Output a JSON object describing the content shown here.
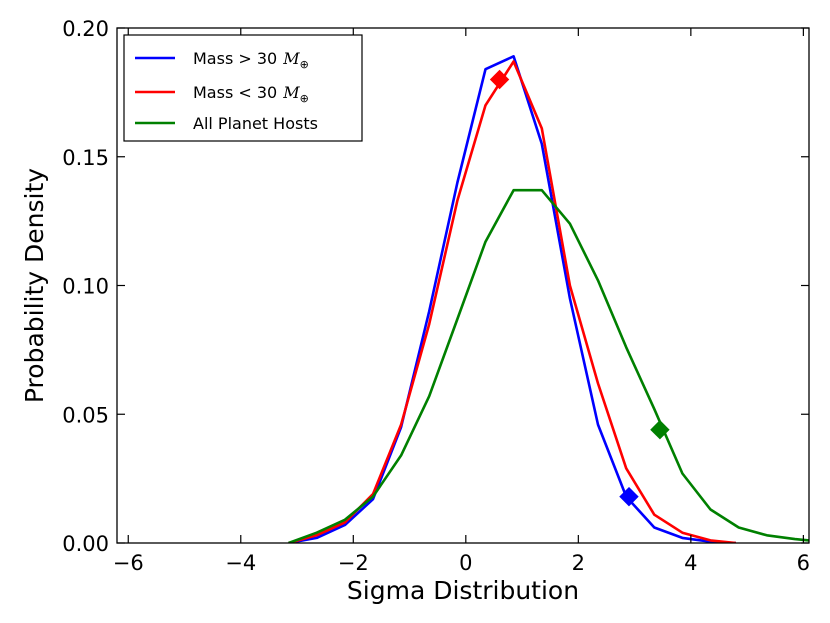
{
  "chart_data": {
    "type": "line",
    "xlabel": "Sigma Distribution",
    "ylabel": "Probability Density",
    "xlim": [
      -6.2,
      6.1
    ],
    "ylim": [
      0,
      0.2
    ],
    "xticks": [
      "−6",
      "−4",
      "−2",
      "0",
      "2",
      "4",
      "6"
    ],
    "xtick_values": [
      -6,
      -4,
      -2,
      0,
      2,
      4,
      6
    ],
    "yticks": [
      "0.00",
      "0.05",
      "0.10",
      "0.15",
      "0.20"
    ],
    "ytick_values": [
      0,
      0.05,
      0.1,
      0.15,
      0.2
    ],
    "grid": false,
    "legend_position": "top-left",
    "series": [
      {
        "name": "Mass > 30 M⊕",
        "legend_text": "Mass > 30",
        "legend_math": "M",
        "legend_sub": "⊕",
        "color": "#0000ff",
        "x": [
          -3.15,
          -2.65,
          -2.15,
          -1.65,
          -1.15,
          -0.65,
          -0.15,
          0.35,
          0.85,
          1.35,
          1.85,
          2.35,
          2.85,
          3.35,
          3.85,
          4.35,
          4.8
        ],
        "y": [
          0.0,
          0.002,
          0.007,
          0.017,
          0.045,
          0.09,
          0.14,
          0.184,
          0.189,
          0.155,
          0.095,
          0.046,
          0.018,
          0.006,
          0.002,
          0.0005,
          0.0
        ],
        "marker": {
          "x": 2.9,
          "y": 0.018
        }
      },
      {
        "name": "Mass < 30 M⊕",
        "legend_text": "Mass < 30",
        "legend_math": "M",
        "legend_sub": "⊕",
        "color": "#ff0000",
        "x": [
          -3.15,
          -2.65,
          -2.15,
          -1.65,
          -1.15,
          -0.65,
          -0.15,
          0.35,
          0.85,
          1.35,
          1.85,
          2.35,
          2.85,
          3.35,
          3.85,
          4.35,
          4.8
        ],
        "y": [
          0.0,
          0.003,
          0.008,
          0.019,
          0.046,
          0.085,
          0.133,
          0.17,
          0.187,
          0.161,
          0.1,
          0.062,
          0.029,
          0.011,
          0.004,
          0.001,
          0.0
        ],
        "marker": {
          "x": 0.6,
          "y": 0.18
        }
      },
      {
        "name": "All Planet Hosts",
        "legend_text": "All Planet Hosts",
        "color": "#008000",
        "x": [
          -3.15,
          -2.65,
          -2.15,
          -1.65,
          -1.15,
          -0.65,
          -0.15,
          0.35,
          0.85,
          1.35,
          1.85,
          2.35,
          2.85,
          3.35,
          3.85,
          4.35,
          4.85,
          5.35,
          5.85,
          6.1
        ],
        "y": [
          0.0,
          0.004,
          0.009,
          0.018,
          0.034,
          0.057,
          0.087,
          0.117,
          0.137,
          0.137,
          0.124,
          0.102,
          0.076,
          0.052,
          0.027,
          0.013,
          0.006,
          0.003,
          0.0015,
          0.001
        ],
        "marker": {
          "x": 3.45,
          "y": 0.044
        }
      }
    ]
  }
}
